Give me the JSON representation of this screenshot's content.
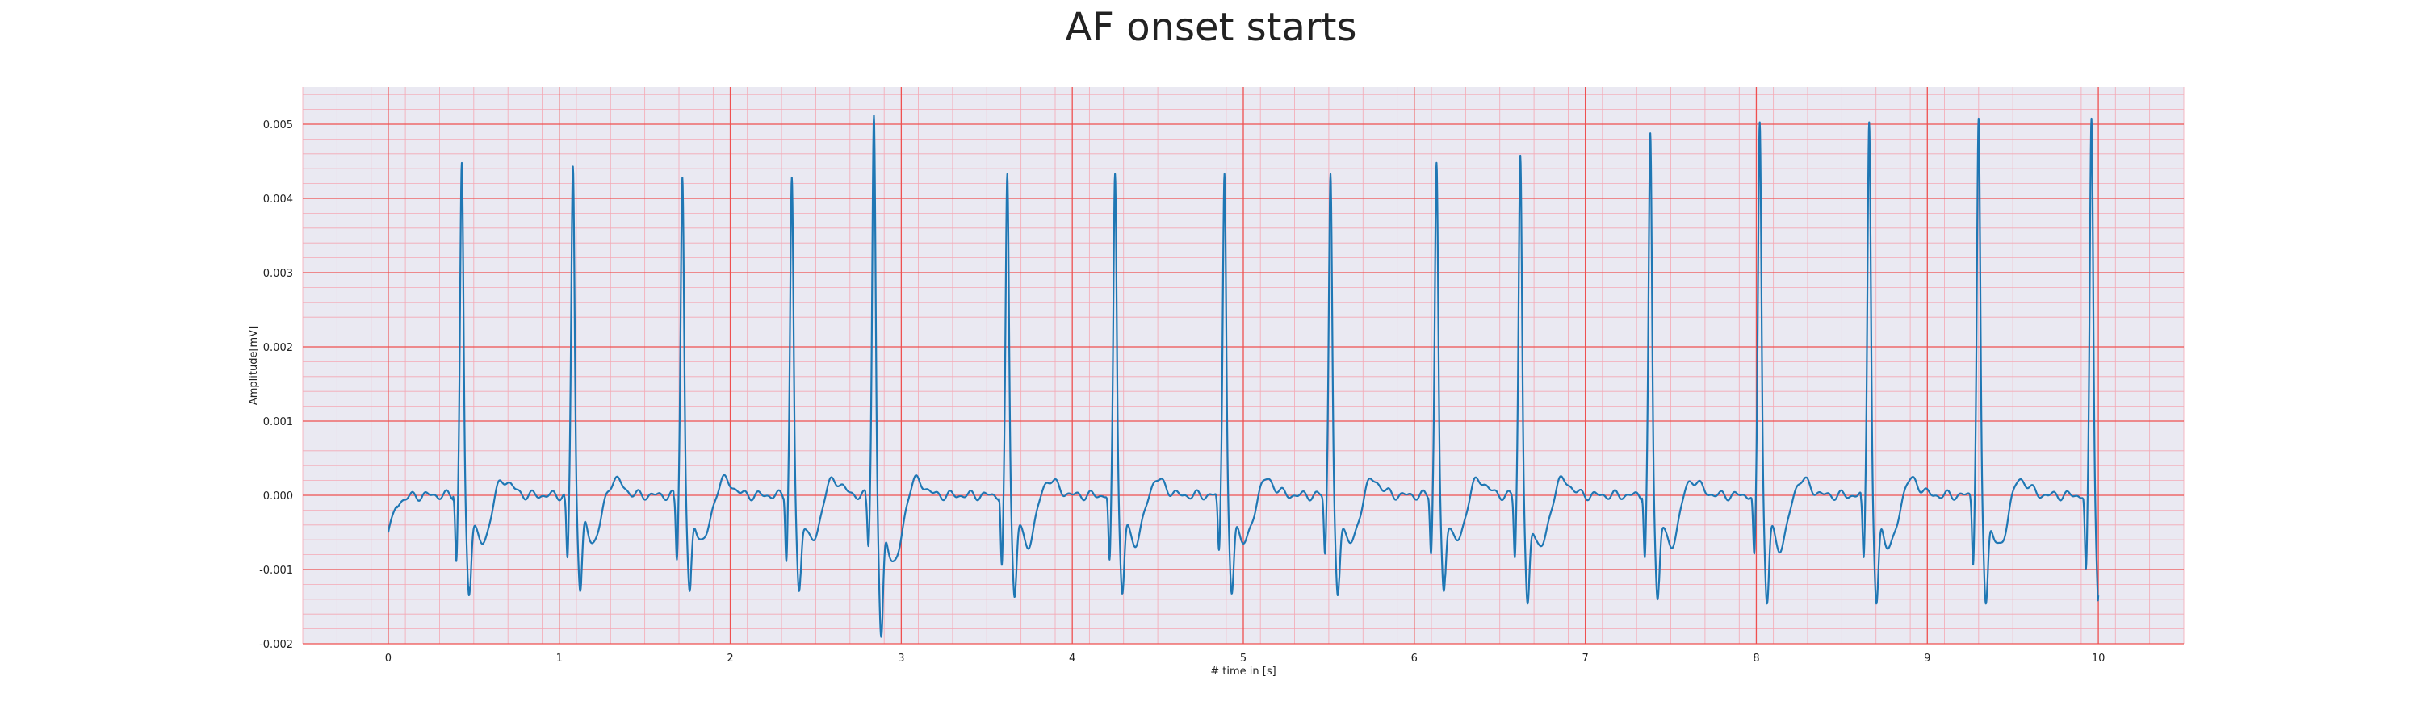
{
  "chart_data": {
    "type": "line",
    "title": "AF onset starts",
    "xlabel": "# time in [s]",
    "ylabel": "Amplitude[mV]",
    "xlim": [
      -0.5,
      10.5
    ],
    "ylim": [
      -0.002,
      0.0055
    ],
    "xticks": [
      0,
      1,
      2,
      3,
      4,
      5,
      6,
      7,
      8,
      9,
      10
    ],
    "xtick_labels": [
      "0",
      "1",
      "2",
      "3",
      "4",
      "5",
      "6",
      "7",
      "8",
      "9",
      "10"
    ],
    "yticks": [
      -0.002,
      -0.001,
      0.0,
      0.001,
      0.002,
      0.003,
      0.004,
      0.005
    ],
    "ytick_labels": [
      "-0.002",
      "-0.001",
      "0.000",
      "0.001",
      "0.002",
      "0.003",
      "0.004",
      "0.005"
    ],
    "grid": true,
    "colors": {
      "line": "#1f77b4",
      "plot_background": "#eae9f2",
      "major_grid": "#ef5050",
      "minor_grid": "#f4a8b4"
    },
    "series": [
      {
        "start": [
          0.0,
          -0.0005
        ],
        "beats": [
          {
            "r_time": 0.43,
            "r_amp": 0.0045,
            "q_amp": -0.0009,
            "s_amp": -0.0012
          },
          {
            "r_time": 1.08,
            "r_amp": 0.00445,
            "q_amp": -0.00085,
            "s_amp": -0.00115
          },
          {
            "r_time": 1.72,
            "r_amp": 0.0043,
            "q_amp": -0.00088,
            "s_amp": -0.00115
          },
          {
            "r_time": 2.36,
            "r_amp": 0.0043,
            "q_amp": -0.0009,
            "s_amp": -0.00115
          },
          {
            "r_time": 2.84,
            "r_amp": 0.00515,
            "q_amp": -0.0007,
            "s_amp": -0.0017
          },
          {
            "r_time": 3.62,
            "r_amp": 0.00435,
            "q_amp": -0.00095,
            "s_amp": -0.00122
          },
          {
            "r_time": 4.25,
            "r_amp": 0.00435,
            "q_amp": -0.00088,
            "s_amp": -0.00118
          },
          {
            "r_time": 4.89,
            "r_amp": 0.00435,
            "q_amp": -0.00075,
            "s_amp": -0.00118
          },
          {
            "r_time": 5.51,
            "r_amp": 0.00435,
            "q_amp": -0.0008,
            "s_amp": -0.0012
          },
          {
            "r_time": 6.13,
            "r_amp": 0.0045,
            "q_amp": -0.0008,
            "s_amp": -0.00115
          },
          {
            "r_time": 6.62,
            "r_amp": 0.0046,
            "q_amp": -0.00085,
            "s_amp": -0.0013
          },
          {
            "r_time": 7.38,
            "r_amp": 0.0049,
            "q_amp": -0.00085,
            "s_amp": -0.00125
          },
          {
            "r_time": 8.02,
            "r_amp": 0.00505,
            "q_amp": -0.0008,
            "s_amp": -0.0013
          },
          {
            "r_time": 8.66,
            "r_amp": 0.00505,
            "q_amp": -0.00085,
            "s_amp": -0.0013
          },
          {
            "r_time": 9.3,
            "r_amp": 0.0051,
            "q_amp": -0.00095,
            "s_amp": -0.0013
          },
          {
            "r_time": 9.96,
            "r_amp": 0.0051,
            "q_amp": -0.001,
            "s_amp": -0.00135
          }
        ],
        "end": [
          10.0,
          -0.00135
        ]
      }
    ]
  }
}
